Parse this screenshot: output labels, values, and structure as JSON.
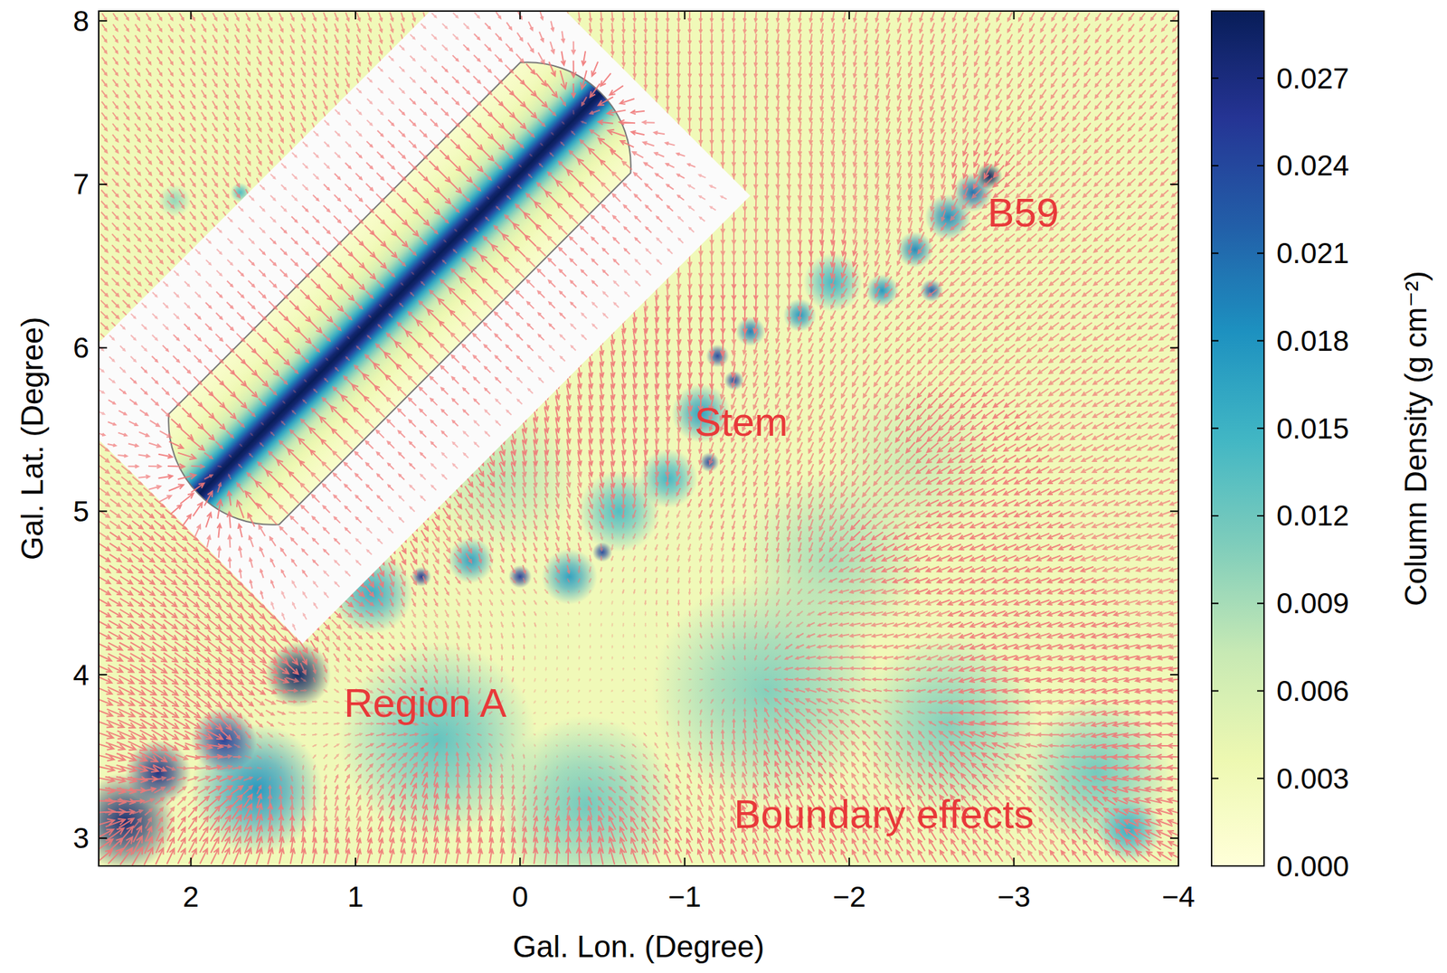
{
  "chart_data": {
    "type": "heatmap",
    "xlabel": "Gal. Lon. (Degree)",
    "ylabel": "Gal. Lat. (Degree)",
    "xlim": [
      2.56,
      -4
    ],
    "ylim": [
      2.83,
      8.06
    ],
    "xticks": [
      2,
      1,
      0,
      {
        "value": -1,
        "label": "−1"
      },
      {
        "value": -2,
        "label": "−2"
      },
      {
        "value": -3,
        "label": "−3"
      },
      {
        "value": -4,
        "label": "−4"
      }
    ],
    "yticks": [
      3,
      4,
      5,
      6,
      7,
      8
    ],
    "colorbar": {
      "label": "Column Density (g cm⁻²)",
      "range": [
        0,
        0.0293
      ],
      "ticks": [
        {
          "value": 0,
          "label": "0.000"
        },
        {
          "value": 0.003,
          "label": "0.003"
        },
        {
          "value": 0.006,
          "label": "0.006"
        },
        {
          "value": 0.009,
          "label": "0.009"
        },
        {
          "value": 0.012,
          "label": "0.012"
        },
        {
          "value": 0.015,
          "label": "0.015"
        },
        {
          "value": 0.018,
          "label": "0.018"
        },
        {
          "value": 0.021,
          "label": "0.021"
        },
        {
          "value": 0.024,
          "label": "0.024"
        },
        {
          "value": 0.027,
          "label": "0.027"
        }
      ]
    },
    "background": 0.003,
    "structures": [
      {
        "lon": -1.5,
        "lat": 3.9,
        "density": 0.011,
        "radius": 0.7
      },
      {
        "lon": -2.6,
        "lat": 3.7,
        "density": 0.011,
        "radius": 0.55
      },
      {
        "lon": 0.5,
        "lat": 3.6,
        "density": 0.013,
        "radius": 0.6
      },
      {
        "lon": -0.4,
        "lat": 3.2,
        "density": 0.012,
        "radius": 0.55
      },
      {
        "lon": -3.5,
        "lat": 3.4,
        "density": 0.012,
        "radius": 0.45
      },
      {
        "lon": -1.9,
        "lat": 4.7,
        "density": 0.009,
        "radius": 0.55
      },
      {
        "lon": -2.4,
        "lat": 5.3,
        "density": 0.007,
        "radius": 0.5
      },
      {
        "lon": 0.1,
        "lat": 5.2,
        "density": 0.008,
        "radius": 0.45
      },
      {
        "lon": 1.6,
        "lat": 3.3,
        "density": 0.018,
        "radius": 0.4
      },
      {
        "lon": -0.6,
        "lat": 5.0,
        "density": 0.014,
        "radius": 0.25
      },
      {
        "lon": 0.9,
        "lat": 4.5,
        "density": 0.016,
        "radius": 0.25
      },
      {
        "lon": -1.9,
        "lat": 6.4,
        "density": 0.015,
        "radius": 0.18
      },
      {
        "lon": -1.1,
        "lat": 5.6,
        "density": 0.017,
        "radius": 0.18
      },
      {
        "lon": -0.9,
        "lat": 5.2,
        "density": 0.015,
        "radius": 0.18
      },
      {
        "lon": -0.3,
        "lat": 4.6,
        "density": 0.017,
        "radius": 0.17
      },
      {
        "lon": 0.3,
        "lat": 4.7,
        "density": 0.017,
        "radius": 0.14
      },
      {
        "lon": -2.6,
        "lat": 6.8,
        "density": 0.019,
        "radius": 0.14
      },
      {
        "lon": -2.75,
        "lat": 6.95,
        "density": 0.021,
        "radius": 0.12
      },
      {
        "lon": -2.4,
        "lat": 6.6,
        "density": 0.019,
        "radius": 0.11
      },
      {
        "lon": -2.2,
        "lat": 6.35,
        "density": 0.018,
        "radius": 0.1
      },
      {
        "lon": -1.7,
        "lat": 6.2,
        "density": 0.018,
        "radius": 0.1
      },
      {
        "lon": -1.4,
        "lat": 6.1,
        "density": 0.02,
        "radius": 0.09
      },
      {
        "lon": -3.7,
        "lat": 3.05,
        "density": 0.016,
        "radius": 0.2
      },
      {
        "lon": 2.4,
        "lat": 3.1,
        "density": 0.028,
        "radius": 0.3
      },
      {
        "lon": 2.2,
        "lat": 3.4,
        "density": 0.027,
        "radius": 0.2
      },
      {
        "lon": 1.8,
        "lat": 3.6,
        "density": 0.025,
        "radius": 0.2
      },
      {
        "lon": 1.35,
        "lat": 4.0,
        "density": 0.029,
        "radius": 0.2
      },
      {
        "lon": -2.85,
        "lat": 7.05,
        "density": 0.029,
        "radius": 0.08
      },
      {
        "lon": -2.5,
        "lat": 6.35,
        "density": 0.022,
        "radius": 0.07
      },
      {
        "lon": -1.2,
        "lat": 5.95,
        "density": 0.024,
        "radius": 0.07
      },
      {
        "lon": -1.3,
        "lat": 5.8,
        "density": 0.024,
        "radius": 0.06
      },
      {
        "lon": -1.15,
        "lat": 5.3,
        "density": 0.024,
        "radius": 0.06
      },
      {
        "lon": -0.5,
        "lat": 4.75,
        "density": 0.024,
        "radius": 0.06
      },
      {
        "lon": 0.0,
        "lat": 4.6,
        "density": 0.025,
        "radius": 0.07
      },
      {
        "lon": 0.6,
        "lat": 4.6,
        "density": 0.026,
        "radius": 0.06
      },
      {
        "lon": 1.7,
        "lat": 6.95,
        "density": 0.014,
        "radius": 0.06
      },
      {
        "lon": 2.1,
        "lat": 6.9,
        "density": 0.01,
        "radius": 0.1
      }
    ],
    "annotations": [
      {
        "text": "B59",
        "lon": -2.84,
        "lat": 6.83
      },
      {
        "text": "Stem",
        "lon": -1.06,
        "lat": 5.55
      },
      {
        "text": "Region A",
        "lon": 1.07,
        "lat": 3.83
      },
      {
        "text": "Boundary effects",
        "lon": -1.3,
        "lat": 3.15
      }
    ]
  }
}
